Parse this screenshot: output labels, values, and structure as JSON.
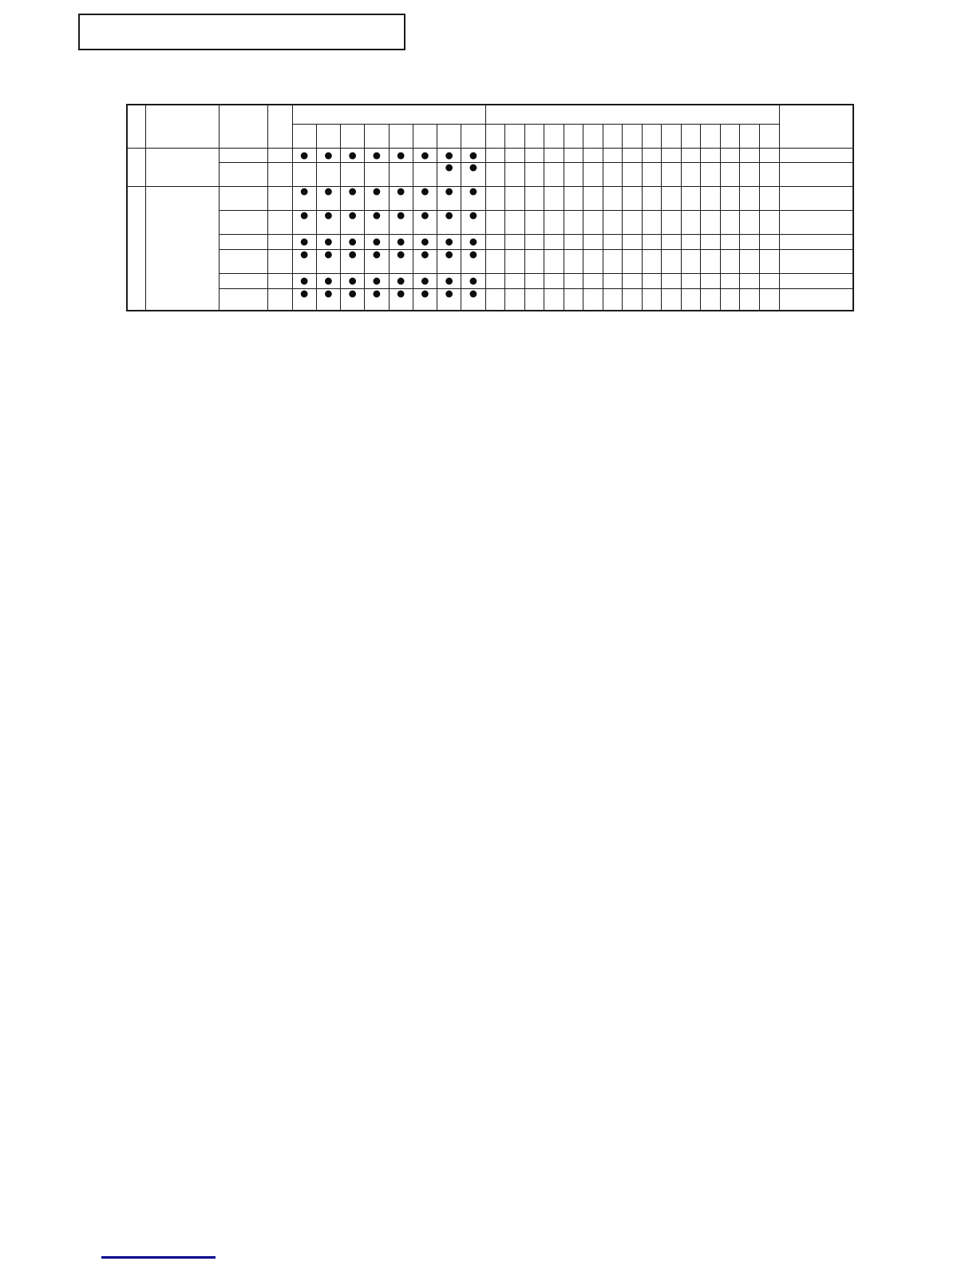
{
  "colors": {
    "table_line": "#1a1a1a",
    "dot": "#0d0d0d",
    "footer_rule": "#00008b",
    "page_bg": "#ffffff"
  },
  "title_box": {
    "text": ""
  },
  "matrix_table": {
    "dot_glyph": "●",
    "left_header_cells": [
      "",
      "",
      "",
      ""
    ],
    "group_headers": [
      "",
      ""
    ],
    "right_header_cell": "",
    "dot_columns": 8,
    "narrow_columns": 15,
    "sections": [
      {
        "rows": [
          {
            "dots": [
              1,
              1,
              1,
              1,
              1,
              1,
              1,
              1
            ]
          },
          {
            "dots": [
              0,
              0,
              0,
              0,
              0,
              0,
              1,
              1
            ]
          }
        ]
      },
      {
        "rows": [
          {
            "dots": [
              1,
              1,
              1,
              1,
              1,
              1,
              1,
              1
            ]
          },
          {
            "dots": [
              1,
              1,
              1,
              1,
              1,
              1,
              1,
              1
            ]
          },
          {
            "dots": [
              1,
              1,
              1,
              1,
              1,
              1,
              1,
              1
            ]
          },
          {
            "dots": [
              1,
              1,
              1,
              1,
              1,
              1,
              1,
              1
            ]
          },
          {
            "dots": [
              1,
              1,
              1,
              1,
              1,
              1,
              1,
              1
            ]
          },
          {
            "dots": [
              1,
              1,
              1,
              1,
              1,
              1,
              1,
              1
            ]
          }
        ]
      }
    ]
  },
  "footer": {
    "rule_present": true
  }
}
